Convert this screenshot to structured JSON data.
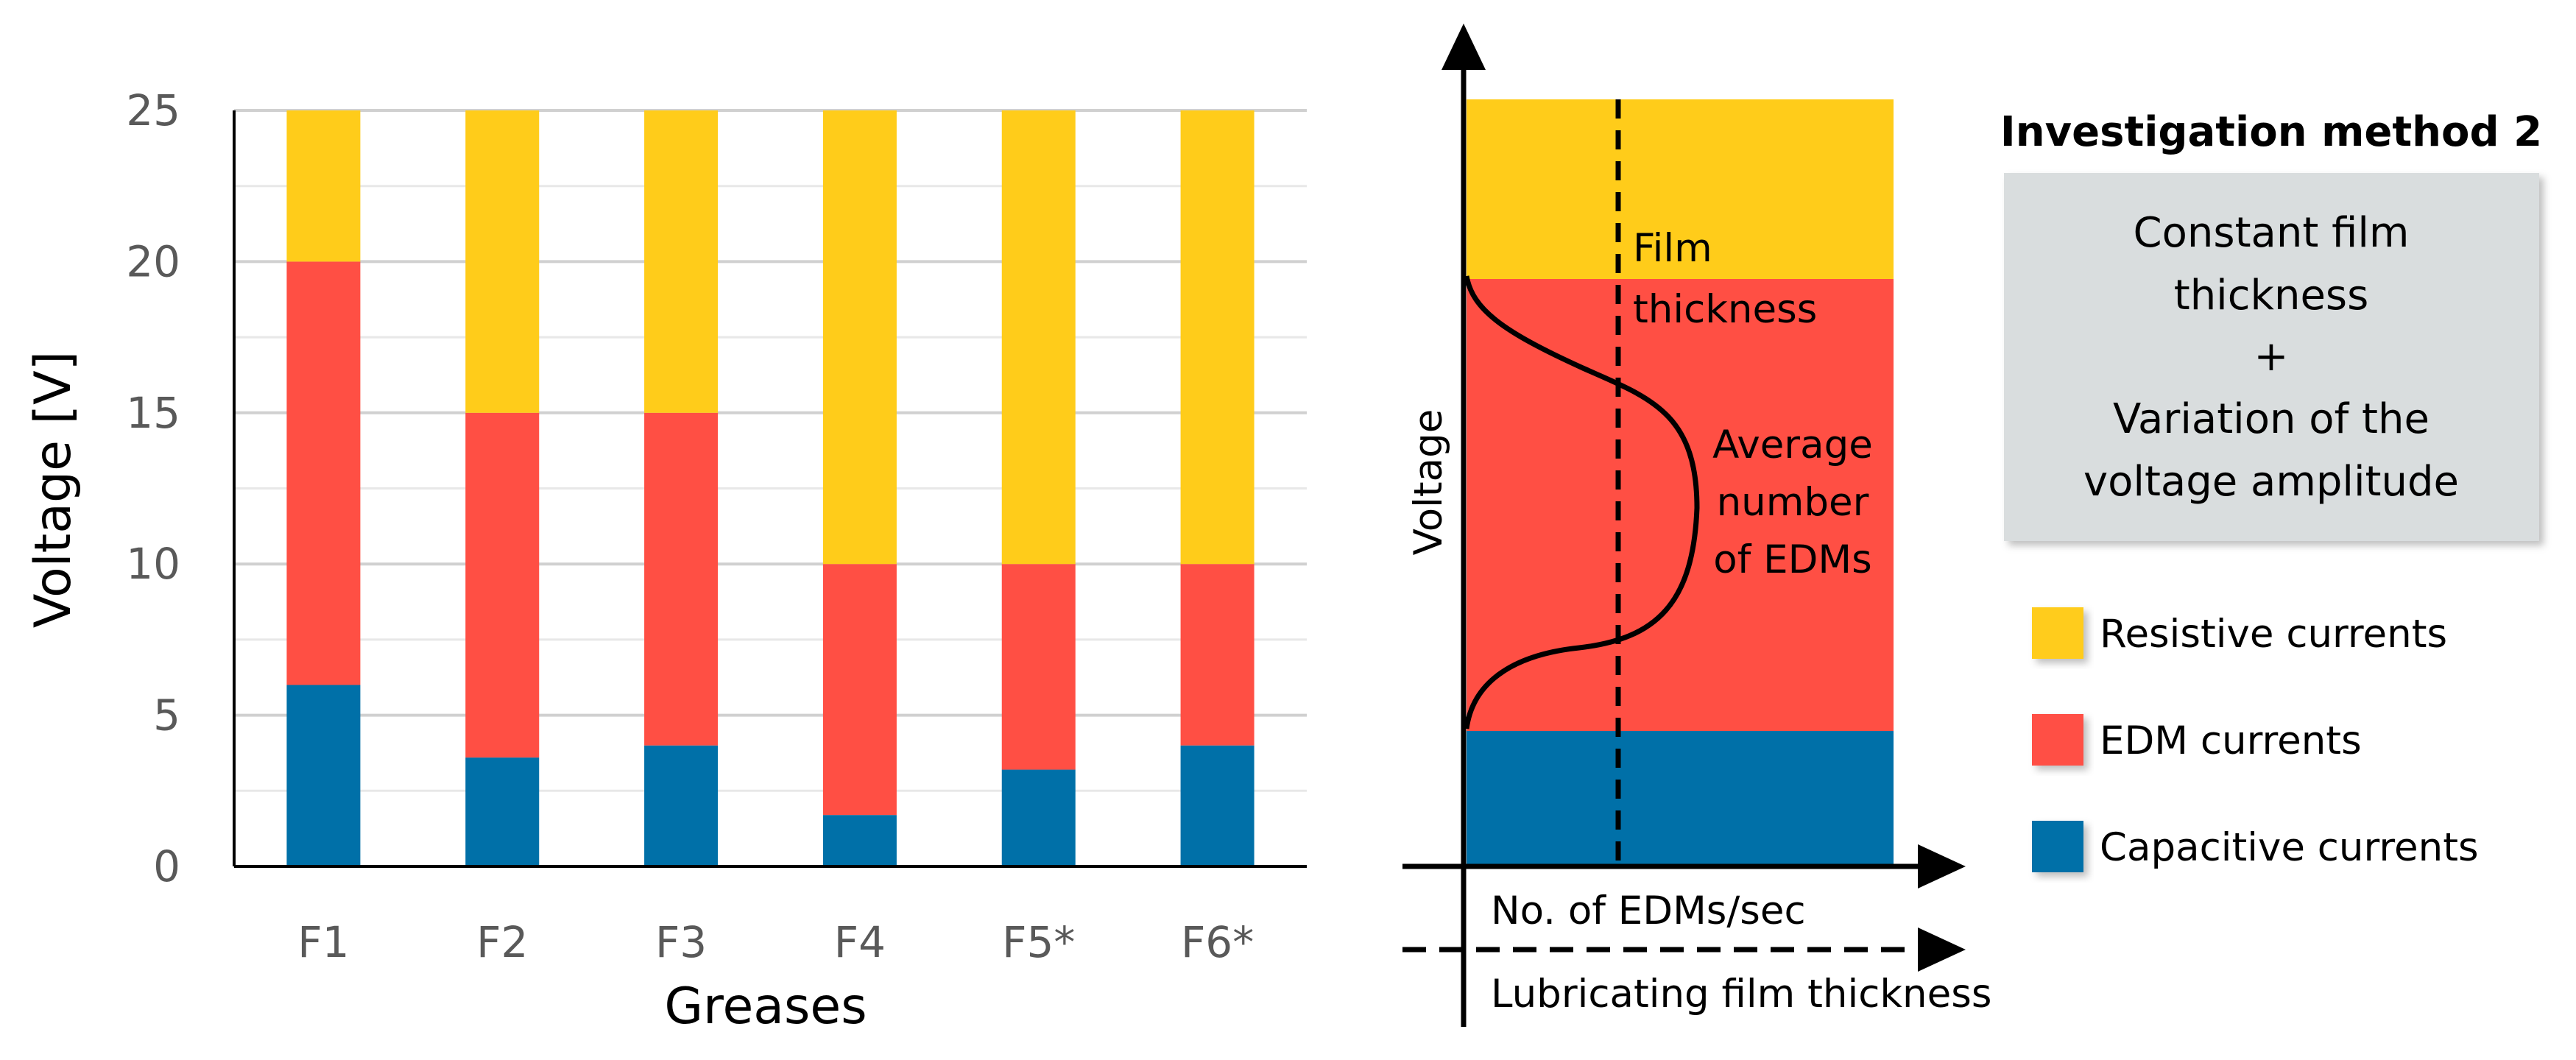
{
  "colors": {
    "resistive": "#FFCC1A",
    "edm": "#FF4F44",
    "capacitive": "#0070A8",
    "grid": "#D9D9D9",
    "box": "#D9DDDE"
  },
  "chart_data": {
    "type": "bar",
    "stacked": true,
    "title": "",
    "xlabel": "Greases",
    "ylabel": "Voltage [V]",
    "ylim": [
      0,
      25
    ],
    "yticks": [
      "0",
      "5",
      "10",
      "15",
      "20",
      "25"
    ],
    "categories": [
      "F1",
      "F2",
      "F3",
      "F4",
      "F5*",
      "F6*"
    ],
    "series": [
      {
        "name": "Capacitive currents",
        "key": "capacitive",
        "values": [
          6.0,
          3.6,
          4.0,
          1.7,
          3.2,
          4.0
        ]
      },
      {
        "name": "EDM currents",
        "key": "edm",
        "values": [
          14.0,
          11.4,
          11.0,
          8.3,
          6.8,
          6.0
        ]
      },
      {
        "name": "Resistive currents",
        "key": "resistive",
        "values": [
          5.0,
          10.0,
          10.0,
          15.0,
          15.0,
          15.0
        ]
      }
    ]
  },
  "diagram": {
    "y_axis_label": "Voltage",
    "x_axis_label": "No. of EDMs/sec",
    "x2_axis_label": "Lubricating film thickness",
    "film_label_line1": "Film",
    "film_label_line2": "thickness",
    "edm_label_line1": "Average",
    "edm_label_line2": "number",
    "edm_label_line3": "of EDMs"
  },
  "panel": {
    "title": "Investigation method 2",
    "box_line1": "Constant film",
    "box_line2": "thickness",
    "box_line3": "+",
    "box_line4": "Variation of the",
    "box_line5": "voltage amplitude"
  },
  "legend": [
    {
      "label": "Resistive currents",
      "key": "resistive"
    },
    {
      "label": "EDM currents",
      "key": "edm"
    },
    {
      "label": "Capacitive currents",
      "key": "capacitive"
    }
  ]
}
